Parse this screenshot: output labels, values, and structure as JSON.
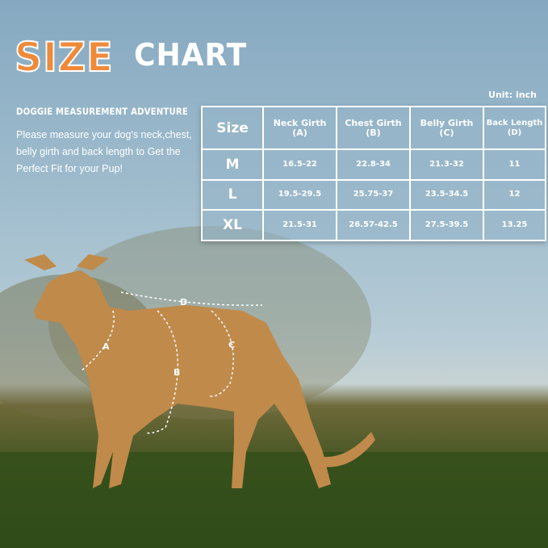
{
  "header": {
    "title_accent": "SIZE",
    "title_rest": "CHART"
  },
  "intro": {
    "subtitle": "DOGGIE MEASUREMENT ADVENTURE",
    "description": "Please measure your dog's neck,chest, belly girth and back length to Get the Perfect Fit for your Pup!"
  },
  "unit": "Unit: inch",
  "table": {
    "headers": [
      {
        "l1": "Size",
        "l2": ""
      },
      {
        "l1": "Neck Girth",
        "l2": "(A)"
      },
      {
        "l1": "Chest Girth",
        "l2": "(B)"
      },
      {
        "l1": "Belly Girth",
        "l2": "(C)"
      },
      {
        "l1": "Back Length",
        "l2": "(D)"
      }
    ],
    "rows": [
      [
        "M",
        "16.5-22",
        "22.8-34",
        "21.3-32",
        "11"
      ],
      [
        "L",
        "19.5-29.5",
        "25.75-37",
        "23.5-34.5",
        "12"
      ],
      [
        "XL",
        "21.5-31",
        "26.57-42.5",
        "27.5-39.5",
        "13.25"
      ]
    ]
  },
  "markers": {
    "a": "A",
    "b": "B",
    "c": "C",
    "d": "D"
  },
  "colors": {
    "accent": "#ee8a3a",
    "sky": "#8fb0c6",
    "dog": "#c08a4a",
    "grass": "#3b5a1e"
  }
}
